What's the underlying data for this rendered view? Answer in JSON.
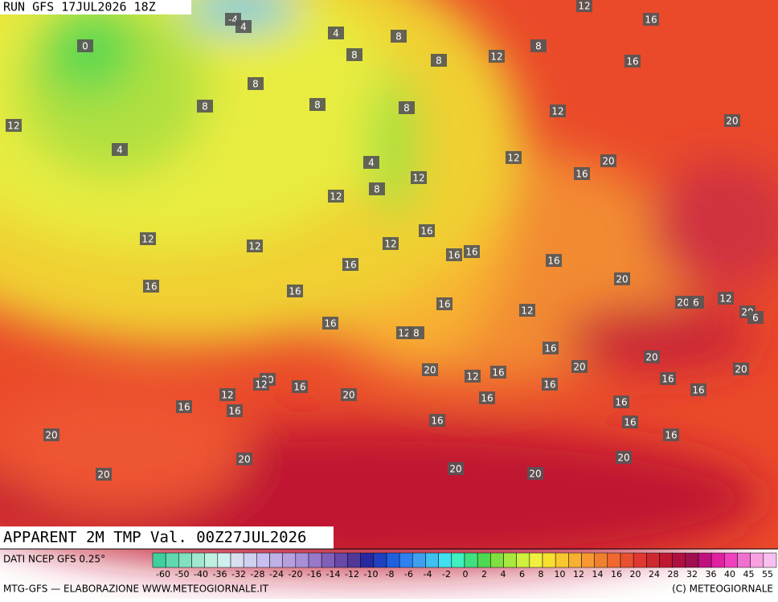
{
  "header": {
    "run": "RUN GFS 17JUL2026 18Z"
  },
  "map": {
    "title": "APPARENT 2M TMP Val. 00Z27JUL2026",
    "contour_labels": [
      -4,
      4,
      4,
      8,
      0,
      8,
      8,
      12,
      8,
      16,
      12,
      16,
      8,
      8,
      8,
      8,
      12,
      12,
      20,
      4,
      4,
      12,
      20,
      16,
      12,
      8,
      12,
      16,
      12,
      12,
      12,
      16,
      16,
      16,
      16,
      20,
      16,
      16,
      16,
      12,
      20,
      6,
      12,
      20,
      6,
      16,
      12,
      8,
      16,
      20,
      20,
      12,
      16,
      20,
      16,
      20,
      20,
      12,
      16,
      12,
      16,
      16,
      20,
      16,
      16,
      16,
      16,
      16,
      16,
      16,
      20,
      20,
      20,
      20,
      20,
      20
    ]
  },
  "footer": {
    "source": "DATI NCEP GFS 0.25°",
    "credit": "MTG-GFS — ELABORAZIONE WWW.METEOGIORNALE.IT",
    "copyright": "(C) METEOGIORNALE"
  },
  "colorbar": {
    "labels": [
      -60,
      -50,
      -40,
      -36,
      -32,
      -28,
      -24,
      -20,
      -16,
      -14,
      -12,
      -10,
      -8,
      -6,
      -4,
      -2,
      0,
      2,
      4,
      6,
      8,
      10,
      12,
      14,
      16,
      20,
      24,
      28,
      32,
      36,
      40,
      45,
      55
    ],
    "colors": [
      "#40d0a0",
      "#60d8b0",
      "#80e0c0",
      "#a0e8d0",
      "#c0f0e0",
      "#d0f0f0",
      "#d8e0f0",
      "#d0d0f0",
      "#c8c0f0",
      "#c0b0e8",
      "#b8a0e0",
      "#a890d8",
      "#9878c8",
      "#8060b8",
      "#6848a8",
      "#503898",
      "#2828a0",
      "#2040c0",
      "#2060e0",
      "#3080f0",
      "#40a0f0",
      "#40c0f0",
      "#40e0f0",
      "#40f0c0",
      "#40e080",
      "#50d850",
      "#80e040",
      "#a8e840",
      "#d0f040",
      "#f0f040",
      "#f8e030",
      "#f8c830",
      "#f8b030",
      "#f89830",
      "#f08030",
      "#f06830",
      "#e85030",
      "#e03830",
      "#d02830",
      "#c01830",
      "#b01040",
      "#a01050",
      "#c01080",
      "#e020a0",
      "#f040c0",
      "#f070d0",
      "#f8a0e0",
      "#f8c0f0"
    ]
  }
}
